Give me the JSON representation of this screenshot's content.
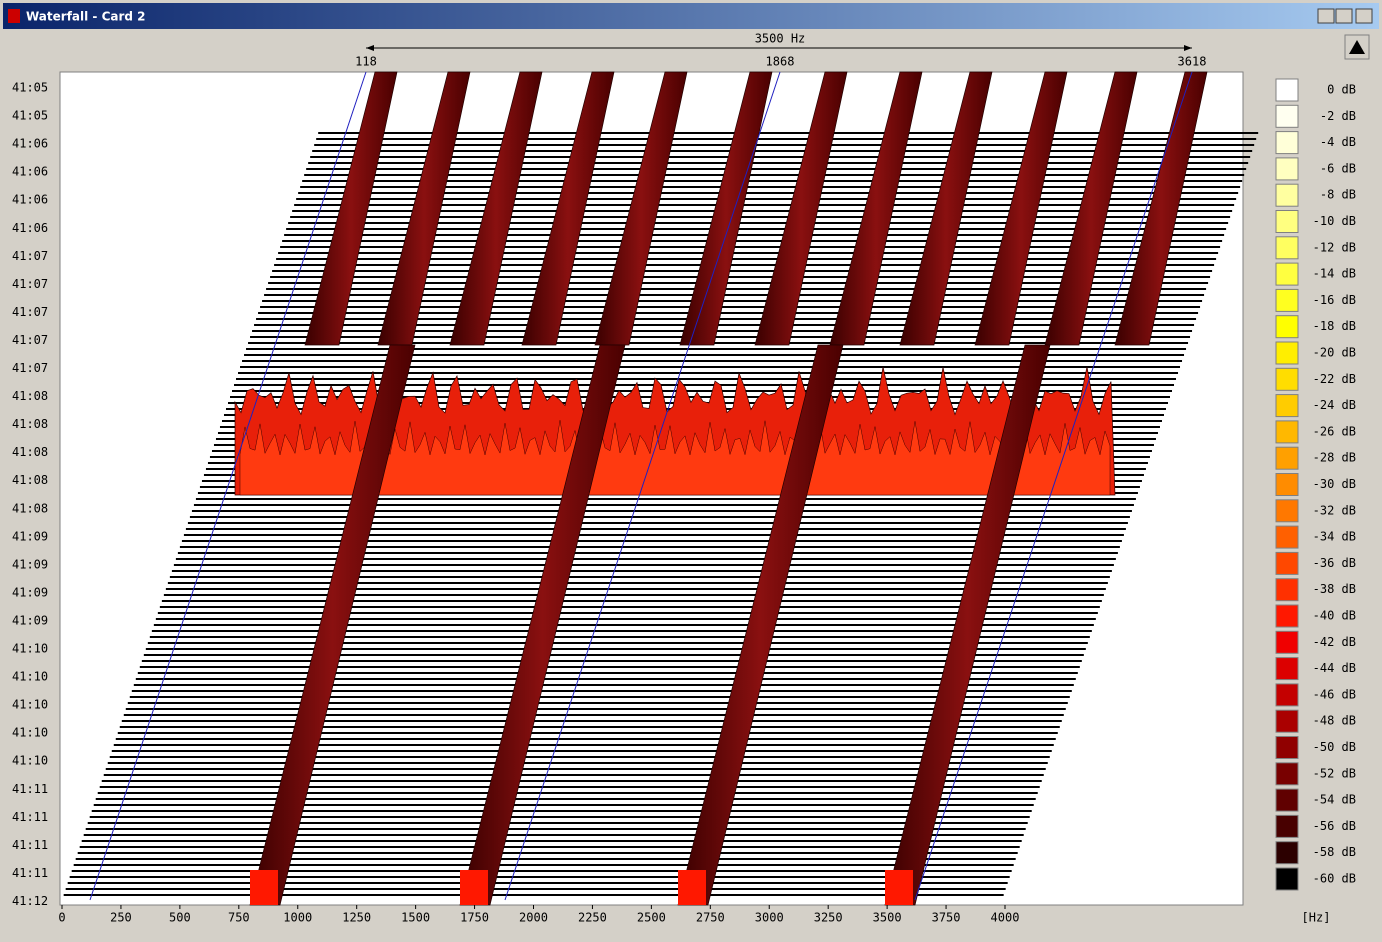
{
  "window": {
    "title": "Waterfall - Card 2"
  },
  "header": {
    "span": "3500 Hz",
    "markers": [
      "118",
      "1868",
      "3618"
    ]
  },
  "time_labels": [
    "41:05",
    "41:05",
    "41:06",
    "41:06",
    "41:06",
    "41:06",
    "41:07",
    "41:07",
    "41:07",
    "41:07",
    "41:07",
    "41:08",
    "41:08",
    "41:08",
    "41:08",
    "41:08",
    "41:09",
    "41:09",
    "41:09",
    "41:09",
    "41:10",
    "41:10",
    "41:10",
    "41:10",
    "41:10",
    "41:11",
    "41:11",
    "41:11",
    "41:11",
    "41:12"
  ],
  "x_axis": {
    "ticks": [
      0,
      250,
      500,
      750,
      1000,
      1250,
      1500,
      1750,
      2000,
      2250,
      2500,
      2750,
      3000,
      3250,
      3500,
      3750,
      4000
    ],
    "unit": "[Hz]"
  },
  "legend": {
    "items": [
      {
        "label": "0 dB",
        "color": "#ffffff"
      },
      {
        "label": "-2 dB",
        "color": "#fffff0"
      },
      {
        "label": "-4 dB",
        "color": "#ffffd8"
      },
      {
        "label": "-6 dB",
        "color": "#ffffc0"
      },
      {
        "label": "-8 dB",
        "color": "#ffffa0"
      },
      {
        "label": "-10 dB",
        "color": "#ffff80"
      },
      {
        "label": "-12 dB",
        "color": "#ffff60"
      },
      {
        "label": "-14 dB",
        "color": "#ffff40"
      },
      {
        "label": "-16 dB",
        "color": "#ffff20"
      },
      {
        "label": "-18 dB",
        "color": "#ffff00"
      },
      {
        "label": "-20 dB",
        "color": "#ffee00"
      },
      {
        "label": "-22 dB",
        "color": "#ffdd00"
      },
      {
        "label": "-24 dB",
        "color": "#ffcc00"
      },
      {
        "label": "-26 dB",
        "color": "#ffb800"
      },
      {
        "label": "-28 dB",
        "color": "#ffa000"
      },
      {
        "label": "-30 dB",
        "color": "#ff8c00"
      },
      {
        "label": "-32 dB",
        "color": "#ff7800"
      },
      {
        "label": "-34 dB",
        "color": "#ff6000"
      },
      {
        "label": "-36 dB",
        "color": "#ff4800"
      },
      {
        "label": "-38 dB",
        "color": "#ff3000"
      },
      {
        "label": "-40 dB",
        "color": "#ff1800"
      },
      {
        "label": "-42 dB",
        "color": "#f00000"
      },
      {
        "label": "-44 dB",
        "color": "#dc0000"
      },
      {
        "label": "-46 dB",
        "color": "#c40000"
      },
      {
        "label": "-48 dB",
        "color": "#aa0000"
      },
      {
        "label": "-50 dB",
        "color": "#900000"
      },
      {
        "label": "-52 dB",
        "color": "#780000"
      },
      {
        "label": "-54 dB",
        "color": "#600000"
      },
      {
        "label": "-56 dB",
        "color": "#480000"
      },
      {
        "label": "-58 dB",
        "color": "#2c0000"
      },
      {
        "label": "-60 dB",
        "color": "#000000"
      }
    ]
  }
}
